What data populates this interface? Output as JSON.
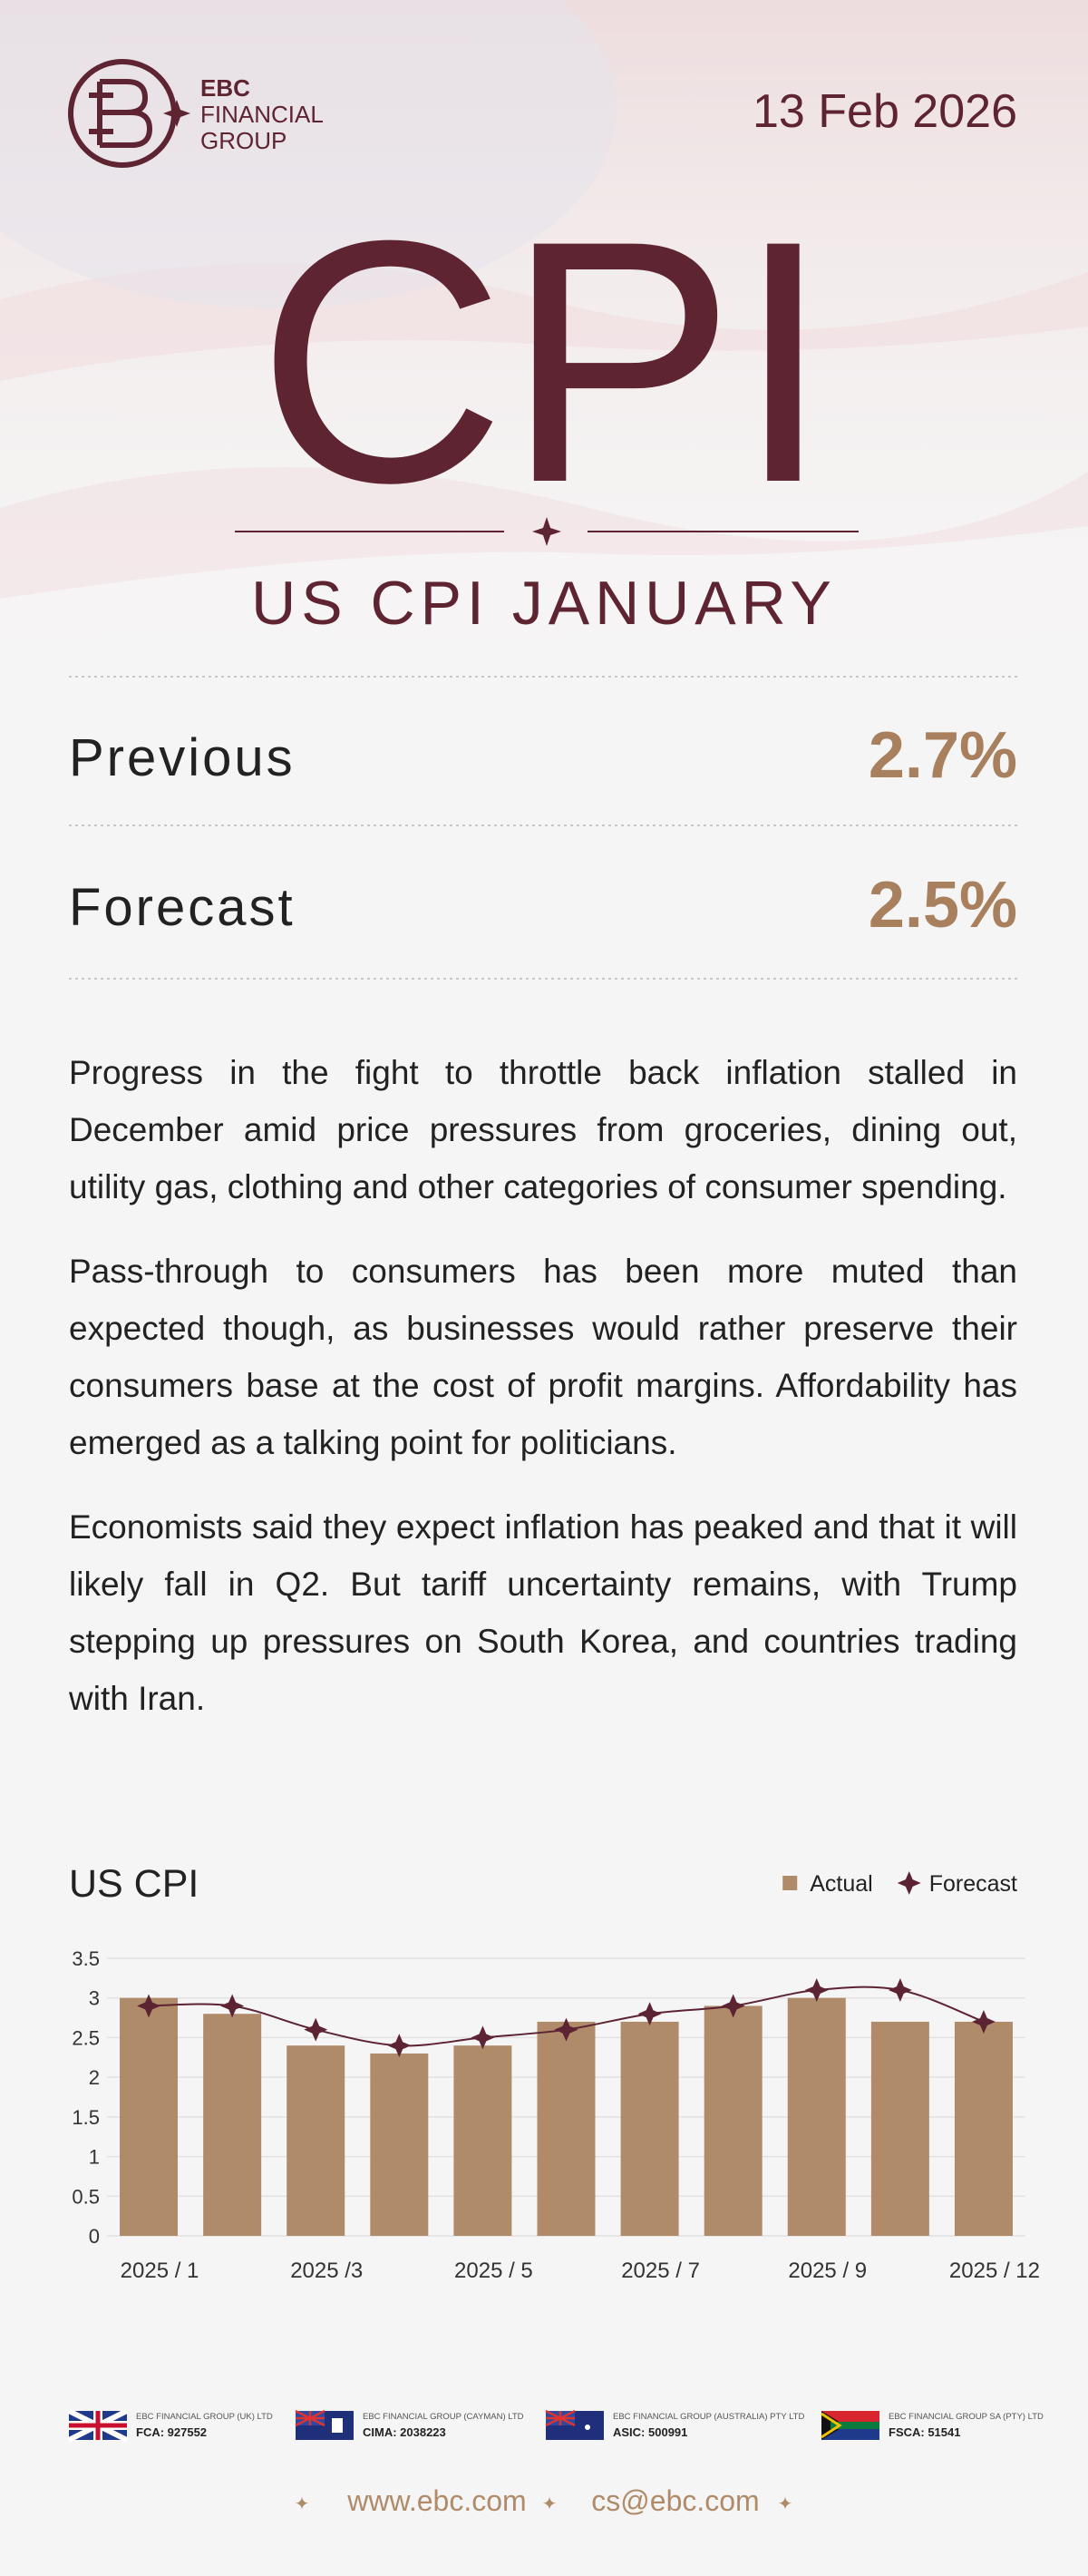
{
  "header": {
    "logo_text": [
      "EBC",
      "FINANCIAL",
      "GROUP"
    ],
    "date": "13 Feb 2026",
    "title": "CPI",
    "subtitle": "US CPI JANUARY"
  },
  "stats": [
    {
      "label": "Previous",
      "value": "2.7%"
    },
    {
      "label": "Forecast",
      "value": "2.5%"
    }
  ],
  "paragraphs": [
    "Progress in the fight to throttle back inflation stalled in December amid price pressures from groceries, dining out, utility gas, clothing and other categories of consumer spending.",
    "Pass-through to consumers has been more muted than expected though, as businesses would rather preserve their consumers base at the cost of profit margins. Affordability has emerged as a talking point for politicians.",
    "Economists said they expect inflation has peaked and that it will likely fall in Q2. But tariff uncertainty remains, with Trump stepping up pressures on South Korea, and countries trading with Iran."
  ],
  "chart_data": {
    "type": "combo",
    "title": "US CPI",
    "categories": [
      "2025 / 1",
      null,
      "2025 /3",
      null,
      "2025 / 5",
      null,
      "2025 / 7",
      null,
      "2025 / 9",
      null,
      "2025 / 12"
    ],
    "series": [
      {
        "name": "Actual",
        "type": "bar",
        "color": "#b08b6a",
        "values": [
          3.0,
          2.8,
          2.4,
          2.3,
          2.4,
          2.7,
          2.7,
          2.9,
          3.0,
          2.7,
          2.7
        ]
      },
      {
        "name": "Forecast",
        "type": "line",
        "color": "#5c2333",
        "values": [
          2.9,
          2.9,
          2.6,
          2.4,
          2.5,
          2.6,
          2.8,
          2.9,
          3.1,
          3.1,
          2.7
        ]
      }
    ],
    "ylim": [
      0,
      3.5
    ],
    "yticks": [
      0,
      0.5,
      1,
      1.5,
      2,
      2.5,
      3,
      3.5
    ],
    "grid": true,
    "legend": "top-right"
  },
  "footer": {
    "entities": [
      {
        "name": "EBC FINANCIAL GROUP (UK) LTD",
        "license": "FCA: 927552"
      },
      {
        "name": "EBC FINANCIAL GROUP (CAYMAN) LTD",
        "license": "CIMA: 2038223"
      },
      {
        "name": "EBC FINANCIAL GROUP (AUSTRALIA) PTY LTD",
        "license": "ASIC: 500991"
      },
      {
        "name": "EBC FINANCIAL GROUP SA (PTY) LTD",
        "license": "FSCA: 51541"
      }
    ],
    "website": "www.ebc.com",
    "email": "cs@ebc.com"
  }
}
